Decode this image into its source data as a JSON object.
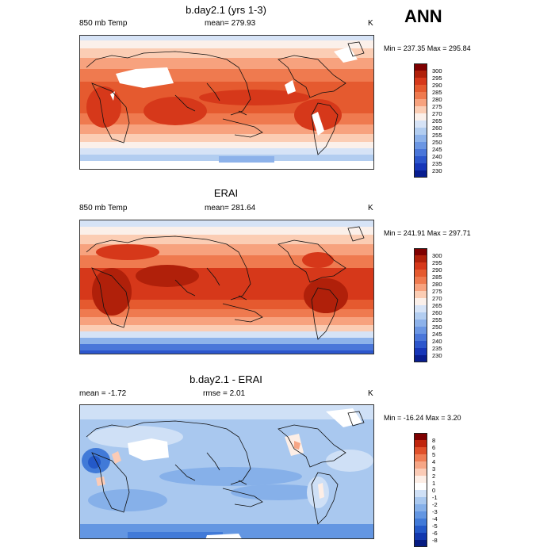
{
  "season": "ANN",
  "panels": [
    {
      "title": "b.day2.1 (yrs 1-3)",
      "left": "850 mb Temp",
      "center": "mean= 279.93",
      "right": "K",
      "minmax": "Min = 237.35 Max = 295.84",
      "colorbar": [
        "300",
        "295",
        "290",
        "285",
        "280",
        "275",
        "270",
        "265",
        "260",
        "255",
        "250",
        "245",
        "240",
        "235",
        "230"
      ]
    },
    {
      "title": "ERAI",
      "left": "850 mb Temp",
      "center": "mean= 281.64",
      "right": "K",
      "minmax": "Min = 241.91 Max = 297.71",
      "colorbar": [
        "300",
        "295",
        "290",
        "285",
        "280",
        "275",
        "270",
        "265",
        "260",
        "255",
        "250",
        "245",
        "240",
        "235",
        "230"
      ]
    },
    {
      "title": "b.day2.1 - ERAI",
      "left": "mean =  -1.72",
      "center": "rmse =   2.01",
      "right": "K",
      "minmax": "Min = -16.24 Max =   3.20",
      "colorbar": [
        "8",
        "6",
        "5",
        "4",
        "3",
        "2",
        "1",
        "0",
        "-1",
        "-2",
        "-3",
        "-4",
        "-5",
        "-6",
        "-8"
      ]
    }
  ],
  "colors": {
    "temp_scale": [
      "#7f0000",
      "#b0200a",
      "#d6381a",
      "#e55a2f",
      "#ef7a4f",
      "#f7a27e",
      "#fbcdb4",
      "#fbf0ea",
      "#d6e3f6",
      "#b2cdf0",
      "#8db2ea",
      "#6b96e3",
      "#4a76d9",
      "#2c56cc",
      "#1636b8",
      "#081d8f"
    ],
    "diff_scale": [
      "#7f0000",
      "#c0250d",
      "#e0502a",
      "#ef7d55",
      "#f6a686",
      "#fbcbb6",
      "#fdeee6",
      "#ffffff",
      "#cfe0f6",
      "#a9c8ef",
      "#86b0e9",
      "#6396e2",
      "#417ad8",
      "#2459c8",
      "#1238ae",
      "#061c82"
    ]
  }
}
